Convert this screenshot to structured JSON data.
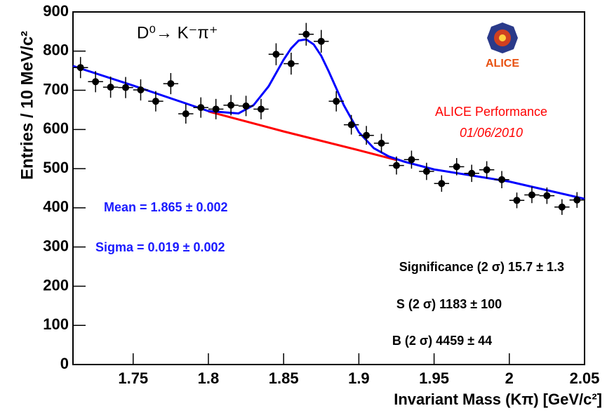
{
  "chart_data": {
    "type": "scatter",
    "x_label": "Invariant Mass (Kπ) [GeV/c²]",
    "y_label": "Entries / 10 MeV/c²",
    "annotations": [
      "D⁰→ K⁻π⁺",
      "ALICE Performance",
      "01/06/2010",
      "Mean = 1.865 ± 0.002",
      "Sigma = 0.019 ± 0.002",
      "Significance (2 σ) 15.7 ± 1.3",
      "S (2 σ) 1183 ± 100",
      "B (2 σ) 4459 ± 44"
    ],
    "logo_text": "ALICE",
    "color": "#000000",
    "x": [
      1.715,
      1.725,
      1.735,
      1.745,
      1.755,
      1.765,
      1.775,
      1.785,
      1.795,
      1.805,
      1.815,
      1.825,
      1.835,
      1.845,
      1.855,
      1.865,
      1.875,
      1.885,
      1.895,
      1.905,
      1.915,
      1.925,
      1.935,
      1.945,
      1.955,
      1.965,
      1.975,
      1.985,
      1.995,
      2.005,
      2.015,
      2.025,
      2.035,
      2.045
    ],
    "values": [
      758,
      722,
      708,
      707,
      701,
      672,
      717,
      640,
      656,
      652,
      662,
      660,
      652,
      792,
      768,
      843,
      825,
      672,
      612,
      585,
      565,
      508,
      523,
      493,
      462,
      505,
      488,
      497,
      472,
      419,
      433,
      431,
      402,
      420
    ],
    "errors": [
      27,
      27,
      27,
      27,
      27,
      26,
      27,
      25,
      26,
      26,
      26,
      26,
      26,
      28,
      28,
      29,
      29,
      26,
      25,
      24,
      24,
      23,
      23,
      22,
      21,
      22,
      22,
      22,
      22,
      20,
      21,
      21,
      20,
      20
    ],
    "fit_curves": [
      {
        "color": "#ff0000",
        "x": [
          1.8,
          1.85,
          1.9,
          1.925
        ],
        "values": [
          646,
          595,
          547,
          522
        ]
      },
      {
        "color": "#0000ff",
        "x": [
          1.71,
          1.75,
          1.8,
          1.82,
          1.83,
          1.84,
          1.85,
          1.855,
          1.86,
          1.865,
          1.87,
          1.875,
          1.88,
          1.89,
          1.9,
          1.91,
          1.92,
          1.93,
          1.95,
          2.0,
          2.05
        ],
        "values": [
          762,
          712,
          647,
          641,
          662,
          710,
          778,
          807,
          827,
          830,
          817,
          788,
          748,
          662,
          593,
          552,
          531,
          518,
          498,
          467,
          423
        ]
      }
    ],
    "xlim": [
      1.71,
      2.05
    ],
    "ylim": [
      0,
      900
    ],
    "xticks": [
      1.75,
      1.8,
      1.85,
      1.9,
      1.95,
      2,
      2.05
    ],
    "yticks": [
      0,
      100,
      200,
      300,
      400,
      500,
      600,
      700,
      800,
      900
    ]
  }
}
